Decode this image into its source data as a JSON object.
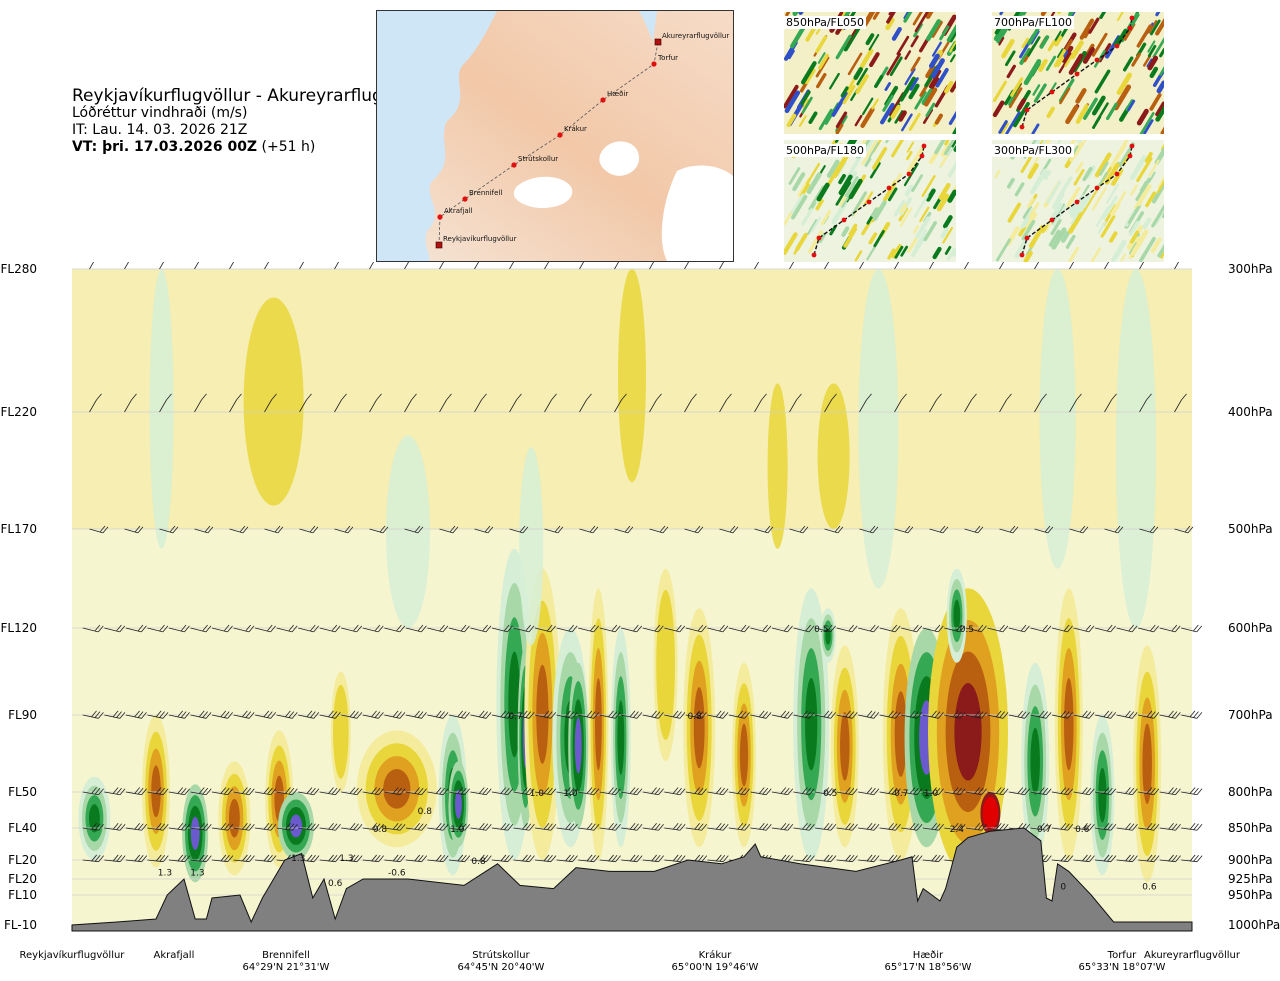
{
  "header": {
    "title": "Reykjavíkurflugvöllur - Akureyrarflugvöllur",
    "variable": "Lóðréttur vindhraði (m/s)",
    "issue_time": "IT: Lau. 14. 03. 2026 21Z",
    "valid_prefix": "VT: þri. 17.03.2026 00Z",
    "valid_suffix": "(+51 h)"
  },
  "route_map": {
    "points": [
      {
        "name": "Reykjavíkurflugvöllur"
      },
      {
        "name": "Akrafjall"
      },
      {
        "name": "Brennifell"
      },
      {
        "name": "Strútskollur"
      },
      {
        "name": "Krákur"
      },
      {
        "name": "Hæðir"
      },
      {
        "name": "Torfur"
      },
      {
        "name": "Akureyrarflugvöllur"
      }
    ]
  },
  "thumbnails": [
    {
      "label": "850hPa/FL050"
    },
    {
      "label": "700hPa/FL100"
    },
    {
      "label": "500hPa/FL180"
    },
    {
      "label": "300hPa/FL300"
    }
  ],
  "colors": {
    "terrain": "#808080",
    "strong_down": "#6a5acd",
    "down_dark": "#0a7a1e",
    "down_mid": "#34a853",
    "down_light": "#a8d8a8",
    "down_pale": "#d6eed6",
    "neutral": "#f5f5d0",
    "up_pale": "#f4ec9c",
    "up_light": "#e8d63a",
    "up_mid": "#e0a020",
    "up_dark": "#b86010",
    "strong_up": "#8b1a1a",
    "extreme_up": "#e00000"
  },
  "chart_data": {
    "type": "heatmap",
    "quantity": "vertical wind speed (m/s)",
    "left_axis_ticks": [
      "FL280",
      "FL220",
      "FL170",
      "FL120",
      "FL90",
      "FL50",
      "FL40",
      "FL20",
      "FL20",
      "FL10",
      "FL-10"
    ],
    "right_axis_ticks": [
      "300hPa",
      "400hPa",
      "500hPa",
      "600hPa",
      "700hPa",
      "800hPa",
      "850hPa",
      "900hPa",
      "925hPa",
      "950hPa",
      "1000hPa"
    ],
    "pressure_levels_hpa": [
      300,
      400,
      500,
      600,
      700,
      800,
      850,
      900,
      925,
      950,
      1000
    ],
    "bottom_labels": [
      {
        "name": "Reykjavíkurflugvöllur",
        "coord": ""
      },
      {
        "name": "Akrafjall",
        "coord": ""
      },
      {
        "name": "Brennifell",
        "coord": "64°29'N 21°31'W"
      },
      {
        "name": "Strútskollur",
        "coord": "64°45'N 20°40'W"
      },
      {
        "name": "Krákur",
        "coord": "65°00'N 19°46'W"
      },
      {
        "name": "Hæðir",
        "coord": "65°17'N 18°56'W"
      },
      {
        "name": "Torfur",
        "coord": "65°33'N 18°07'W"
      },
      {
        "name": "Akureyrarflugvöllur",
        "coord": ""
      }
    ],
    "contour_labels": [
      {
        "text": "1.3",
        "x": 0.083,
        "p": 915
      },
      {
        "text": "1.3",
        "x": 0.112,
        "p": 915
      },
      {
        "text": "1.3",
        "x": 0.202,
        "p": 895
      },
      {
        "text": "1.3",
        "x": 0.245,
        "p": 895
      },
      {
        "text": "0.6",
        "x": 0.235,
        "p": 930
      },
      {
        "text": "-0.6",
        "x": 0.29,
        "p": 915
      },
      {
        "text": "0.8",
        "x": 0.275,
        "p": 850
      },
      {
        "text": "0.8",
        "x": 0.315,
        "p": 825
      },
      {
        "text": "1.0",
        "x": 0.344,
        "p": 850
      },
      {
        "text": "0.8",
        "x": 0.363,
        "p": 900
      },
      {
        "text": "0.7",
        "x": 0.396,
        "p": 700
      },
      {
        "text": "1.0",
        "x": 0.415,
        "p": 800
      },
      {
        "text": "1.0",
        "x": 0.445,
        "p": 800
      },
      {
        "text": "0.8",
        "x": 0.556,
        "p": 700
      },
      {
        "text": "0.5",
        "x": 0.677,
        "p": 800
      },
      {
        "text": "0.5",
        "x": 0.669,
        "p": 600
      },
      {
        "text": "-0.7",
        "x": 0.739,
        "p": 800
      },
      {
        "text": "1.0",
        "x": 0.767,
        "p": 800
      },
      {
        "text": "2.4",
        "x": 0.79,
        "p": 850
      },
      {
        "text": "0.5",
        "x": 0.799,
        "p": 600
      },
      {
        "text": "0.7",
        "x": 0.868,
        "p": 850
      },
      {
        "text": "0.6",
        "x": 0.902,
        "p": 850
      },
      {
        "text": "0",
        "x": 0.885,
        "p": 935
      },
      {
        "text": "0.6",
        "x": 0.962,
        "p": 935
      }
    ]
  }
}
